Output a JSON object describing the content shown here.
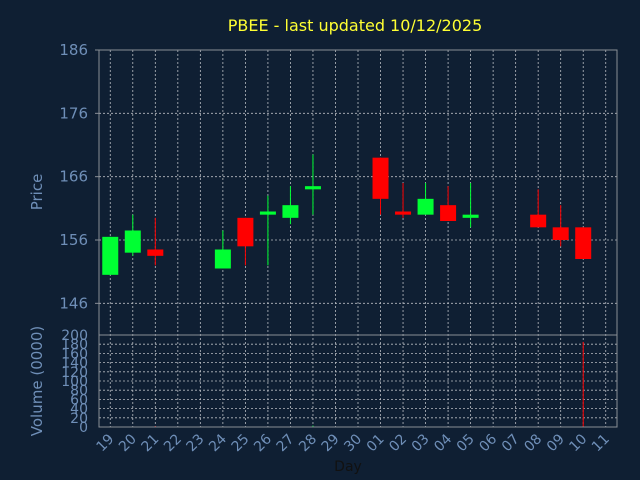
{
  "colors": {
    "background": "#0f1f33",
    "axis": "#8a8f96",
    "grid": "#b8bcc2",
    "text": "#6f8fb8",
    "title": "#ffff33",
    "up": "#00ff33",
    "down": "#ff0000"
  },
  "chart_data": {
    "type": "candlestick",
    "title": "PBEE - last updated 10/12/2025",
    "xlabel": "Day",
    "ylabel_price": "Price",
    "ylabel_volume": "Volume (0000)",
    "grid": true,
    "price_ylim": [
      141,
      186
    ],
    "price_yticks": [
      "186",
      "176",
      "166",
      "156",
      "146"
    ],
    "volume_ylim": [
      0,
      200
    ],
    "volume_yticks": [
      "200",
      "180",
      "160",
      "140",
      "120",
      "100",
      "80",
      "60",
      "40",
      "20",
      "0"
    ],
    "x_ticks": [
      "19",
      "20",
      "21",
      "22",
      "23",
      "24",
      "25",
      "26",
      "27",
      "28",
      "29",
      "30",
      "01",
      "02",
      "03",
      "04",
      "05",
      "06",
      "07",
      "08",
      "09",
      "10",
      "11"
    ],
    "candles": [
      {
        "day": "19",
        "open": 150.5,
        "high": 156.5,
        "low": 150.5,
        "close": 156.5,
        "volume": 0
      },
      {
        "day": "20",
        "open": 154,
        "high": 160,
        "low": 153.5,
        "close": 157.5,
        "volume": 0
      },
      {
        "day": "21",
        "open": 154.5,
        "high": 159.5,
        "low": 152,
        "close": 153.5,
        "volume": 2
      },
      {
        "day": "24",
        "open": 151.5,
        "high": 157.5,
        "low": 151.5,
        "close": 154.5,
        "volume": 0
      },
      {
        "day": "25",
        "open": 159.5,
        "high": 159.5,
        "low": 152,
        "close": 155,
        "volume": 0
      },
      {
        "day": "26",
        "open": 160,
        "high": 163,
        "low": 152,
        "close": 160.5,
        "volume": 0
      },
      {
        "day": "27",
        "open": 159.5,
        "high": 164.5,
        "low": 158.5,
        "close": 161.5,
        "volume": 0
      },
      {
        "day": "28",
        "open": 164,
        "high": 169.5,
        "low": 160,
        "close": 164.5,
        "volume": 3
      },
      {
        "day": "01",
        "open": 169,
        "high": 169,
        "low": 160,
        "close": 162.5,
        "volume": 0
      },
      {
        "day": "02",
        "open": 160.5,
        "high": 165,
        "low": 159.5,
        "close": 160,
        "volume": 0
      },
      {
        "day": "03",
        "open": 160,
        "high": 165,
        "low": 160,
        "close": 162.5,
        "volume": 0
      },
      {
        "day": "04",
        "open": 161.5,
        "high": 164.5,
        "low": 159,
        "close": 159,
        "volume": 0
      },
      {
        "day": "05",
        "open": 159.5,
        "high": 165,
        "low": 158,
        "close": 160,
        "volume": 0
      },
      {
        "day": "08",
        "open": 160,
        "high": 164,
        "low": 158,
        "close": 158,
        "volume": 0
      },
      {
        "day": "09",
        "open": 158,
        "high": 161.5,
        "low": 155,
        "close": 156,
        "volume": 0
      },
      {
        "day": "10",
        "open": 158,
        "high": 158,
        "low": 153,
        "close": 153,
        "volume": 185
      }
    ]
  }
}
